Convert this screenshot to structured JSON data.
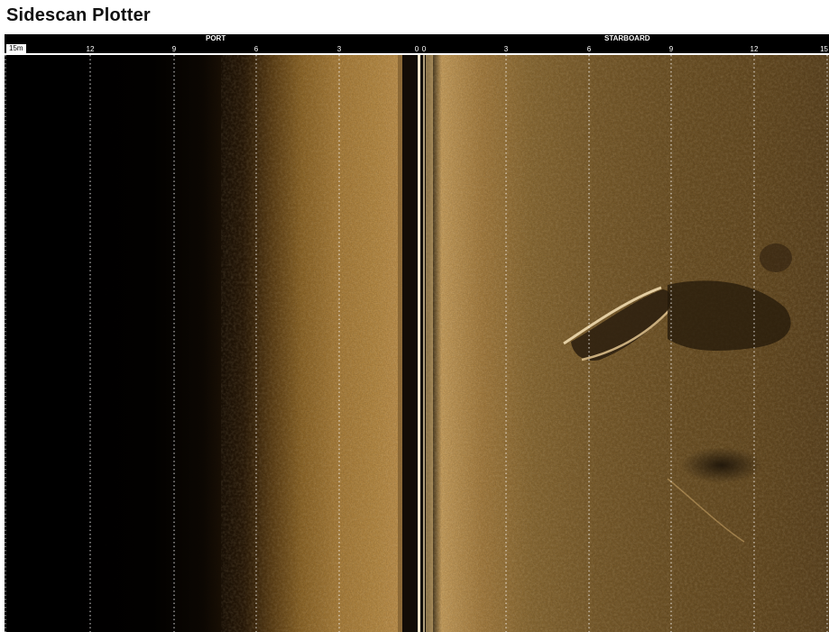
{
  "window": {
    "title": "Sidescan Plotter"
  },
  "scale": {
    "range_badge": "15m",
    "port_label": "PORT",
    "starboard_label": "STARBOARD",
    "port_ticks": [
      "12",
      "9",
      "6",
      "3",
      "0"
    ],
    "starboard_ticks": [
      "0",
      "3",
      "6",
      "9",
      "12",
      "15"
    ]
  },
  "colors": {
    "sonar_dark": "#000000",
    "sonar_bright": "#c9a05e",
    "sonar_bottom": "#6e5226",
    "grid_line": "#ffffff"
  }
}
